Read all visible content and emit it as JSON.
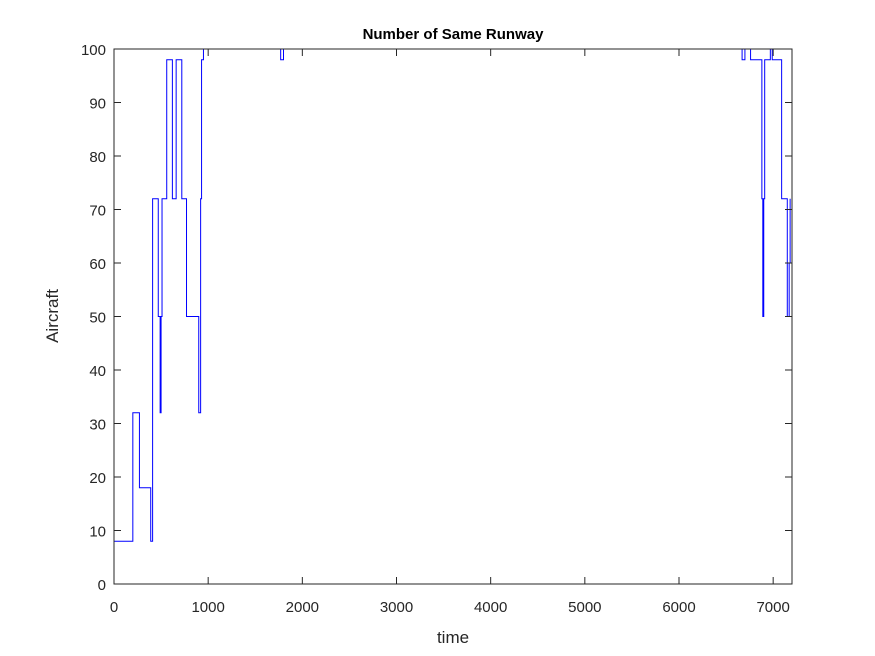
{
  "chart_data": {
    "type": "line",
    "title": "Number of Same Runway",
    "xlabel": "time",
    "ylabel": "Aircraft",
    "xlim": [
      0,
      7200
    ],
    "ylim": [
      0,
      100
    ],
    "xticks": [
      0,
      1000,
      2000,
      3000,
      4000,
      5000,
      6000,
      7000
    ],
    "yticks": [
      0,
      10,
      20,
      30,
      40,
      50,
      60,
      70,
      80,
      90,
      100
    ],
    "grid": false,
    "line_color": "#0000ff",
    "series": [
      {
        "step": true,
        "points": [
          [
            0,
            8
          ],
          [
            200,
            8
          ],
          [
            200,
            32
          ],
          [
            270,
            32
          ],
          [
            270,
            18
          ],
          [
            390,
            18
          ],
          [
            390,
            8
          ],
          [
            410,
            8
          ],
          [
            410,
            72
          ],
          [
            470,
            72
          ],
          [
            470,
            50
          ],
          [
            490,
            50
          ],
          [
            490,
            32
          ],
          [
            500,
            32
          ],
          [
            500,
            50
          ],
          [
            510,
            50
          ],
          [
            510,
            72
          ],
          [
            560,
            72
          ],
          [
            560,
            98
          ],
          [
            620,
            98
          ],
          [
            620,
            72
          ],
          [
            660,
            72
          ],
          [
            660,
            98
          ],
          [
            720,
            98
          ],
          [
            720,
            72
          ],
          [
            770,
            72
          ],
          [
            770,
            50
          ],
          [
            900,
            50
          ],
          [
            900,
            32
          ],
          [
            920,
            32
          ],
          [
            920,
            72
          ],
          [
            930,
            72
          ],
          [
            930,
            98
          ],
          [
            950,
            98
          ],
          [
            950,
            100
          ],
          [
            1770,
            100
          ],
          [
            1770,
            98
          ],
          [
            1800,
            98
          ],
          [
            1800,
            100
          ],
          [
            6670,
            100
          ],
          [
            6670,
            98
          ],
          [
            6700,
            98
          ],
          [
            6700,
            100
          ],
          [
            6760,
            100
          ],
          [
            6760,
            98
          ],
          [
            6880,
            98
          ],
          [
            6880,
            72
          ],
          [
            6890,
            72
          ],
          [
            6890,
            50
          ],
          [
            6900,
            50
          ],
          [
            6900,
            72
          ],
          [
            6910,
            72
          ],
          [
            6910,
            98
          ],
          [
            6970,
            98
          ],
          [
            6970,
            100
          ],
          [
            6990,
            100
          ],
          [
            6990,
            98
          ],
          [
            7090,
            98
          ],
          [
            7090,
            72
          ],
          [
            7150,
            72
          ],
          [
            7150,
            50
          ],
          [
            7170,
            50
          ],
          [
            7170,
            60
          ],
          [
            7180,
            60
          ],
          [
            7180,
            72
          ]
        ]
      }
    ]
  }
}
